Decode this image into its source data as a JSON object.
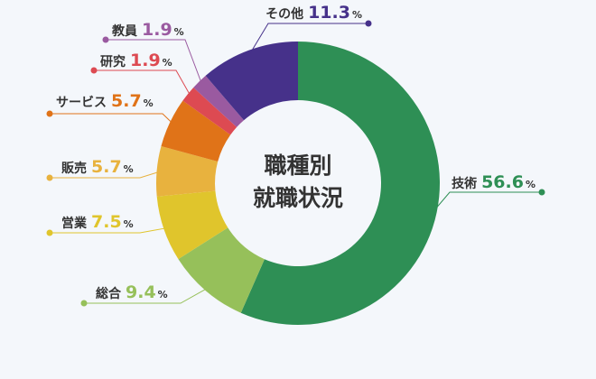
{
  "chart_data": {
    "type": "pie",
    "title": [
      "職種別",
      "就職状況"
    ],
    "percent_sign": "%",
    "slices": [
      {
        "label": "技術",
        "value": 56.6,
        "value_text": "56.6",
        "color": "#2e8f55"
      },
      {
        "label": "総合",
        "value": 9.4,
        "value_text": "9.4",
        "color": "#96c05a"
      },
      {
        "label": "営業",
        "value": 7.5,
        "value_text": "7.5",
        "color": "#e0c52c"
      },
      {
        "label": "販売",
        "value": 5.7,
        "value_text": "5.7",
        "color": "#e8b23e"
      },
      {
        "label": "サービス",
        "value": 5.7,
        "value_text": "5.7",
        "color": "#e07318"
      },
      {
        "label": "研究",
        "value": 1.9,
        "value_text": "1.9",
        "color": "#dd4a52"
      },
      {
        "label": "教員",
        "value": 1.9,
        "value_text": "1.9",
        "color": "#9a5aa0"
      },
      {
        "label": "その他",
        "value": 11.3,
        "value_text": "11.3",
        "color": "#46318a"
      }
    ]
  }
}
